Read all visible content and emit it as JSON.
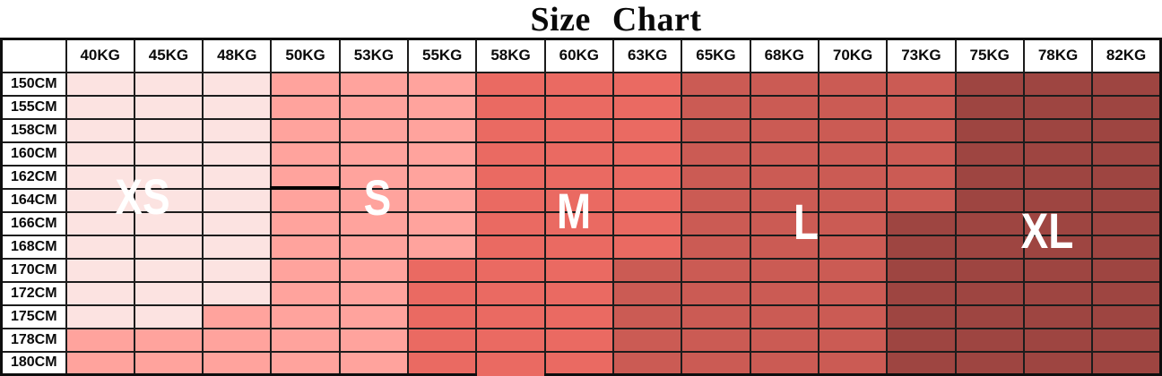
{
  "title": "Size Chart",
  "chart_data": {
    "type": "heatmap",
    "title": "Size Chart",
    "x_categories": [
      "40KG",
      "45KG",
      "48KG",
      "50KG",
      "53KG",
      "55KG",
      "58KG",
      "60KG",
      "63KG",
      "65KG",
      "68KG",
      "70KG",
      "73KG",
      "75KG",
      "78KG",
      "82KG"
    ],
    "y_categories": [
      "150CM",
      "155CM",
      "158CM",
      "160CM",
      "162CM",
      "164CM",
      "166CM",
      "168CM",
      "170CM",
      "172CM",
      "175CM",
      "178CM",
      "180CM"
    ],
    "legend": [
      {
        "label": "XS",
        "color": "#fce3e1"
      },
      {
        "label": "S",
        "color": "#ffa39d"
      },
      {
        "label": "M",
        "color": "#ea6a62"
      },
      {
        "label": "L",
        "color": "#cb5b54"
      },
      {
        "label": "XL",
        "color": "#9e4541"
      }
    ],
    "grid": true,
    "grid_color": "#1c1c1c",
    "corner_label": "",
    "cells": [
      [
        "XS",
        "XS",
        "XS",
        "S",
        "S",
        "S",
        "M",
        "M",
        "M",
        "L",
        "L",
        "L",
        "L",
        "XL",
        "XL",
        "XL"
      ],
      [
        "XS",
        "XS",
        "XS",
        "S",
        "S",
        "S",
        "M",
        "M",
        "M",
        "L",
        "L",
        "L",
        "L",
        "XL",
        "XL",
        "XL"
      ],
      [
        "XS",
        "XS",
        "XS",
        "S",
        "S",
        "S",
        "M",
        "M",
        "M",
        "L",
        "L",
        "L",
        "L",
        "XL",
        "XL",
        "XL"
      ],
      [
        "XS",
        "XS",
        "XS",
        "S",
        "S",
        "S",
        "M",
        "M",
        "M",
        "L",
        "L",
        "L",
        "L",
        "XL",
        "XL",
        "XL"
      ],
      [
        "XS",
        "XS",
        "XS",
        "S",
        "S",
        "S",
        "M",
        "M",
        "M",
        "L",
        "L",
        "L",
        "L",
        "XL",
        "XL",
        "XL"
      ],
      [
        "XS",
        "XS",
        "XS",
        "S",
        "S",
        "S",
        "M",
        "M",
        "M",
        "L",
        "L",
        "L",
        "L",
        "XL",
        "XL",
        "XL"
      ],
      [
        "XS",
        "XS",
        "XS",
        "S",
        "S",
        "S",
        "M",
        "M",
        "M",
        "L",
        "L",
        "L",
        "XL",
        "XL",
        "XL",
        "XL"
      ],
      [
        "XS",
        "XS",
        "XS",
        "S",
        "S",
        "S",
        "M",
        "M",
        "M",
        "L",
        "L",
        "L",
        "XL",
        "XL",
        "XL",
        "XL"
      ],
      [
        "XS",
        "XS",
        "XS",
        "S",
        "S",
        "M",
        "M",
        "M",
        "L",
        "L",
        "L",
        "L",
        "XL",
        "XL",
        "XL",
        "XL"
      ],
      [
        "XS",
        "XS",
        "XS",
        "S",
        "S",
        "M",
        "M",
        "M",
        "L",
        "L",
        "L",
        "L",
        "XL",
        "XL",
        "XL",
        "XL"
      ],
      [
        "XS",
        "XS",
        "S",
        "S",
        "S",
        "M",
        "M",
        "M",
        "L",
        "L",
        "L",
        "L",
        "XL",
        "XL",
        "XL",
        "XL"
      ],
      [
        "S",
        "S",
        "S",
        "S",
        "S",
        "M",
        "M",
        "M",
        "L",
        "L",
        "L",
        "L",
        "XL",
        "XL",
        "XL",
        "XL"
      ],
      [
        "S",
        "S",
        "S",
        "S",
        "S",
        "M",
        "M",
        "M",
        "L",
        "L",
        "L",
        "L",
        "XL",
        "XL",
        "XL",
        "XL"
      ]
    ]
  }
}
